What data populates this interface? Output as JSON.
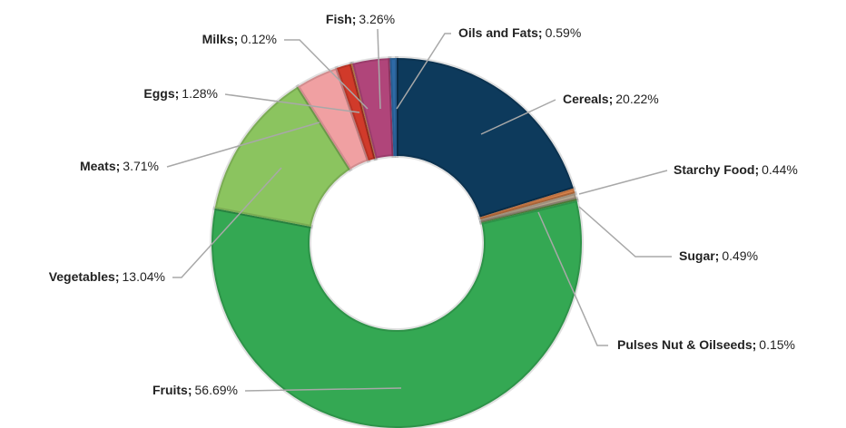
{
  "chart_data": {
    "type": "donut",
    "categories": [
      "Cereals;",
      "Starchy Food;",
      "Sugar;",
      "Pulses Nut & Oilseeds;",
      "Fruits;",
      "Vegetables;",
      "Meats;",
      "Eggs;",
      "Milks;",
      "Fish;",
      "Oils and Fats;"
    ],
    "values": [
      20.22,
      0.44,
      0.49,
      0.15,
      56.69,
      13.04,
      3.71,
      1.28,
      0.12,
      3.26,
      0.59
    ],
    "value_labels": [
      "20.22%",
      "0.44%",
      "0.49%",
      "0.15%",
      "56.69%",
      "13.04%",
      "3.71%",
      "1.28%",
      "0.12%",
      "3.26%",
      "0.59%"
    ],
    "colors": [
      "#0d3a5c",
      "#d9824b",
      "#b5a590",
      "#5f9e45",
      "#34a853",
      "#8bc45f",
      "#f0a0a2",
      "#d13a2a",
      "#e39a57",
      "#b0457a",
      "#2e6aa6"
    ]
  }
}
